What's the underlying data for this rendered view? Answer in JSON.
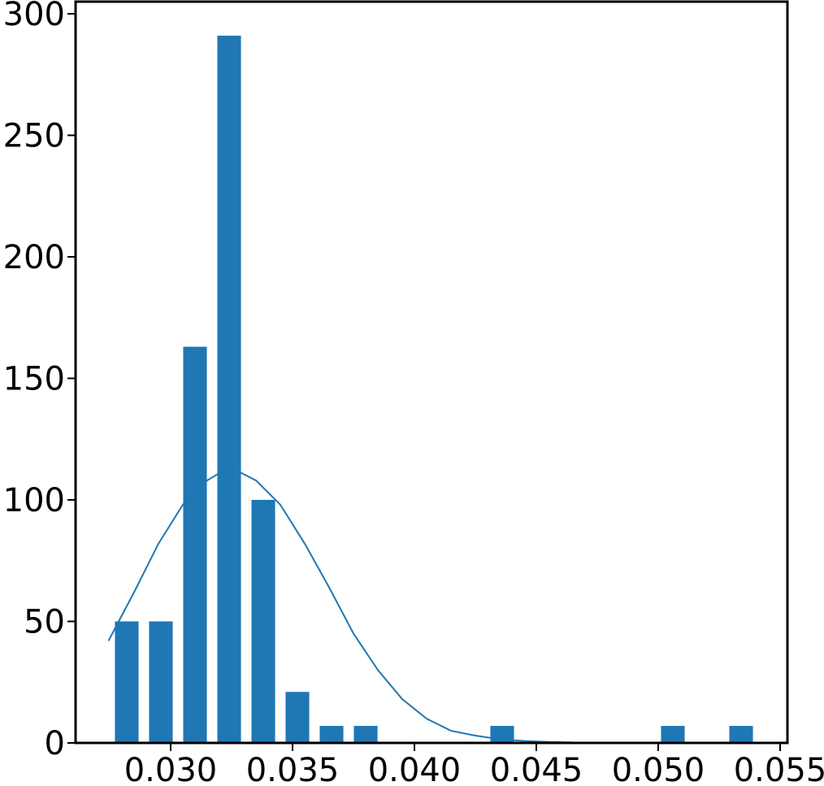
{
  "chart_data": {
    "type": "bar",
    "x": [
      0.0282,
      0.0296,
      0.031,
      0.0324,
      0.0338,
      0.0352,
      0.0366,
      0.038,
      0.0436,
      0.0506,
      0.0534
    ],
    "values": [
      50,
      50,
      163,
      291,
      100,
      21,
      7,
      7,
      7,
      7,
      7
    ],
    "bin_width": 0.00097,
    "curve": {
      "x": [
        0.02745,
        0.0285,
        0.0295,
        0.0305,
        0.0315,
        0.032,
        0.03272,
        0.0335,
        0.0345,
        0.0355,
        0.0365,
        0.0375,
        0.0385,
        0.0395,
        0.0405,
        0.0415,
        0.0425,
        0.0435,
        0.0445,
        0.0455,
        0.0465
      ],
      "y": [
        42,
        62,
        82,
        98,
        108,
        111,
        112,
        108,
        98,
        82,
        64,
        45,
        30,
        18,
        10,
        5,
        3,
        1.5,
        0.8,
        0.4,
        0.2
      ]
    },
    "title": "",
    "xlabel": "",
    "ylabel": "",
    "xlim": [
      0.0261,
      0.0553
    ],
    "ylim": [
      0,
      305
    ],
    "xticks": [
      "0.030",
      "0.035",
      "0.040",
      "0.045",
      "0.050",
      "0.055"
    ],
    "yticks": [
      "0",
      "50",
      "100",
      "150",
      "200",
      "250",
      "300"
    ],
    "grid": false,
    "colors": {
      "bar": "#1f77b4",
      "curve": "#1f77b4",
      "axis": "#000000"
    }
  }
}
